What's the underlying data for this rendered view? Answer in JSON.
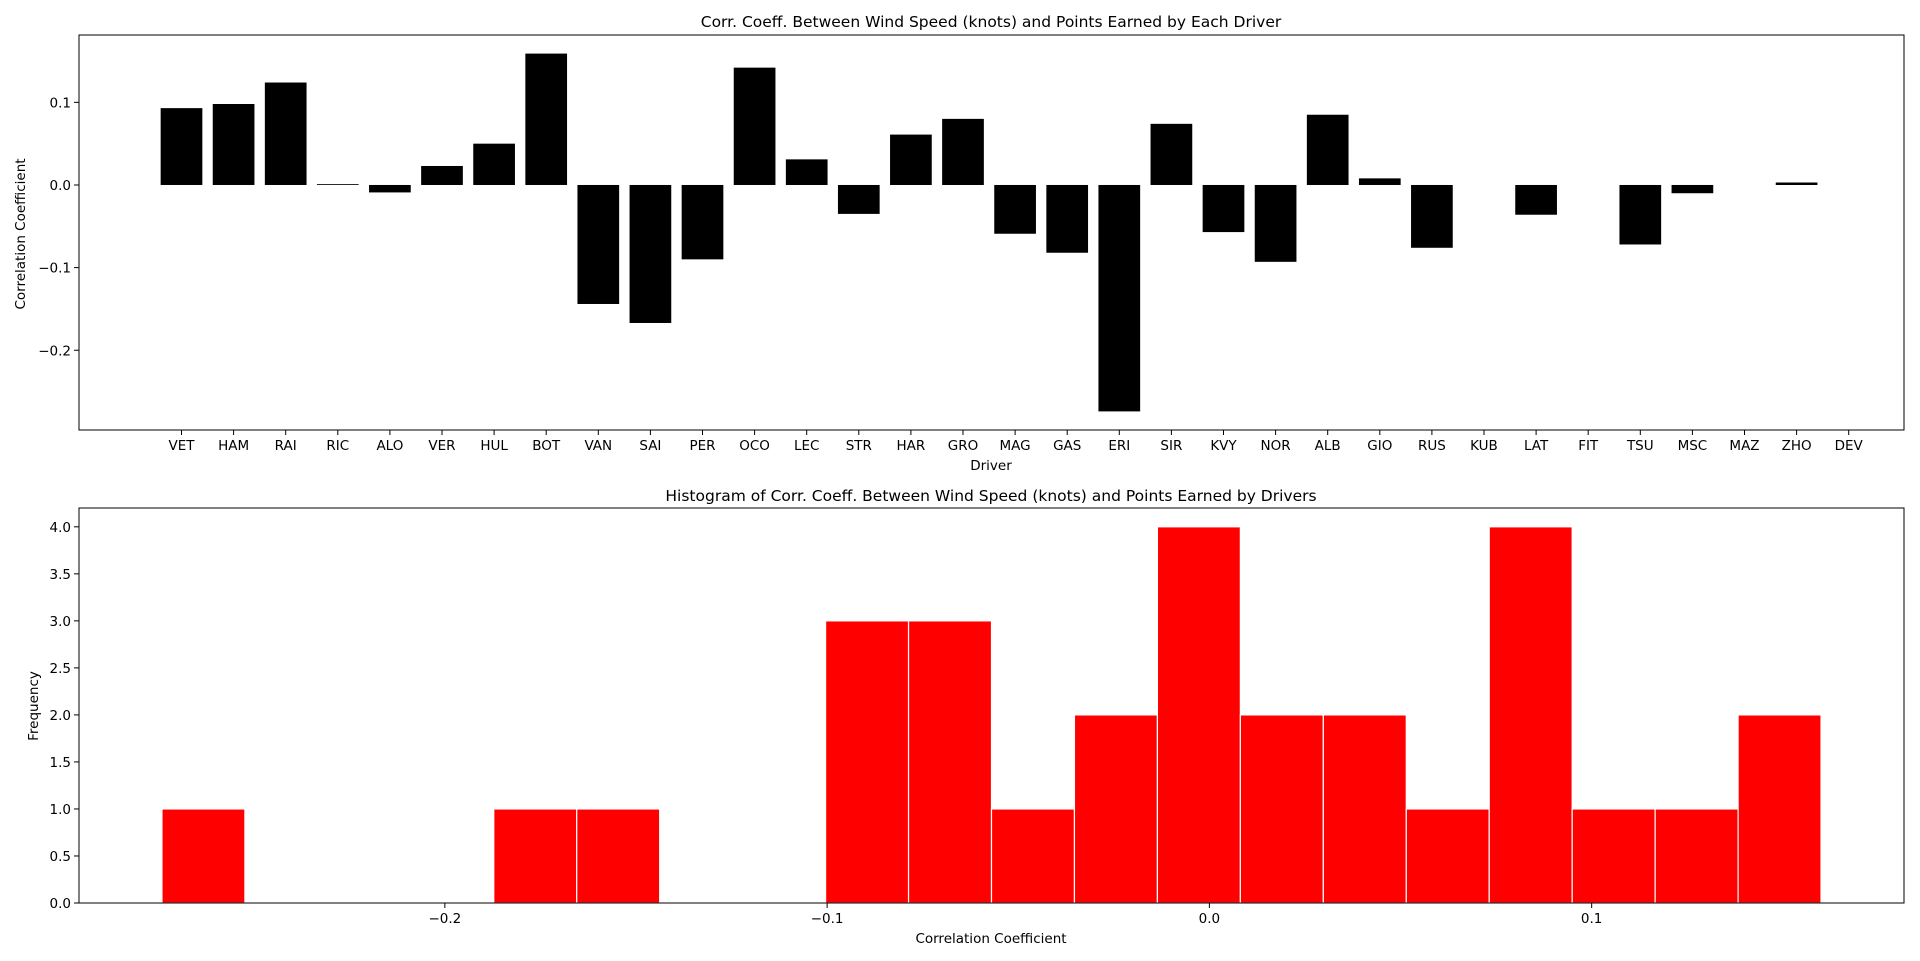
{
  "chart_data": [
    {
      "type": "bar",
      "title": "Corr. Coeff. Between Wind Speed (knots) and Points Earned by Each Driver",
      "xlabel": "Driver",
      "ylabel": "Correlation Coefficient",
      "categories": [
        "VET",
        "HAM",
        "RAI",
        "RIC",
        "ALO",
        "VER",
        "HUL",
        "BOT",
        "VAN",
        "SAI",
        "PER",
        "OCO",
        "LEC",
        "STR",
        "HAR",
        "GRO",
        "MAG",
        "GAS",
        "ERI",
        "SIR",
        "KVY",
        "NOR",
        "ALB",
        "GIO",
        "RUS",
        "KUB",
        "LAT",
        "FIT",
        "TSU",
        "MSC",
        "MAZ",
        "ZHO",
        "DEV"
      ],
      "values": [
        0.093,
        0.098,
        0.124,
        0.001,
        -0.009,
        0.023,
        0.05,
        0.159,
        -0.144,
        -0.167,
        -0.09,
        0.142,
        0.031,
        -0.035,
        0.061,
        0.08,
        -0.059,
        -0.082,
        -0.274,
        0.074,
        -0.057,
        -0.093,
        0.085,
        0.008,
        -0.076,
        0.0,
        -0.036,
        0.0,
        -0.072,
        -0.01,
        0.0,
        0.003,
        0.0
      ],
      "ylim": [
        -0.2965,
        0.1815
      ],
      "yticks": [
        -0.2,
        -0.1,
        0.0,
        0.1
      ],
      "ytick_labels": [
        "−0.2",
        "−0.1",
        "0.0",
        "0.1"
      ],
      "bar_color": "#000000",
      "grid": false
    },
    {
      "type": "bar",
      "title": "Histogram of Corr. Coeff. Between Wind Speed (knots) and Points Earned by Drivers",
      "xlabel": "Correlation Coefficient",
      "ylabel": "Frequency",
      "bin_edges": [
        -0.274,
        -0.2523,
        -0.2306,
        -0.2089,
        -0.1872,
        -0.1655,
        -0.1438,
        -0.1221,
        -0.1004,
        -0.0787,
        -0.057,
        -0.0353,
        -0.0136,
        0.0081,
        0.0298,
        0.0515,
        0.0732,
        0.0949,
        0.1166,
        0.1383,
        0.16
      ],
      "values": [
        1,
        0,
        0,
        0,
        1,
        1,
        0,
        0,
        3,
        3,
        1,
        2,
        4,
        2,
        2,
        1,
        4,
        1,
        1,
        2
      ],
      "xlim": [
        -0.2957,
        0.1817
      ],
      "ylim": [
        0,
        4.2
      ],
      "xticks": [
        -0.2,
        -0.1,
        0.0,
        0.1
      ],
      "xtick_labels": [
        "−0.2",
        "−0.1",
        "0.0",
        "0.1"
      ],
      "yticks": [
        0.0,
        0.5,
        1.0,
        1.5,
        2.0,
        2.5,
        3.0,
        3.5,
        4.0
      ],
      "ytick_labels": [
        "0.0",
        "0.5",
        "1.0",
        "1.5",
        "2.0",
        "2.5",
        "3.0",
        "3.5",
        "4.0"
      ],
      "bar_color": "#ff0000",
      "edge_color": "#ffffff",
      "grid": false
    }
  ]
}
